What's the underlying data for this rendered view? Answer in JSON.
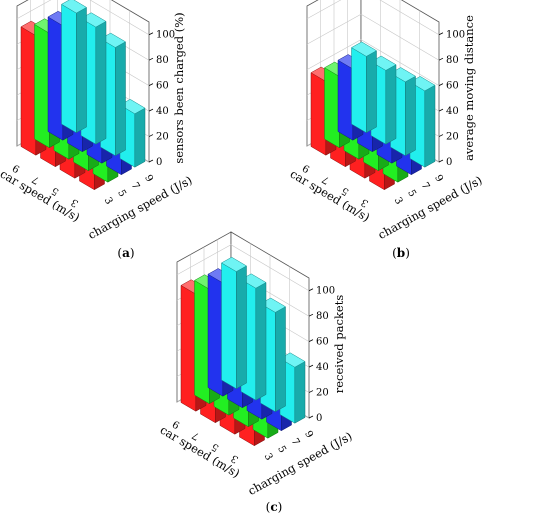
{
  "chart_data": [
    {
      "type": "bar3d",
      "caption_pre": "(",
      "caption_letter": "a",
      "caption_post": ")",
      "xlabel": "car speed (m/s)",
      "ylabel": "charging speed (J/s)",
      "zlabel": "sensors been charged (%)",
      "x_ticks": [
        "9",
        "7",
        "5",
        "3"
      ],
      "y_ticks": [
        "3",
        "5",
        "7",
        "9"
      ],
      "z_ticks": [
        "0",
        "20",
        "40",
        "60",
        "80",
        "100"
      ],
      "zlim": [
        0,
        110
      ],
      "grid": true,
      "values": [
        [
          94,
          90,
          90,
          94
        ],
        [
          91,
          88,
          88,
          92
        ],
        [
          81,
          80,
          80,
          85
        ],
        [
          44,
          39,
          40,
          42
        ]
      ]
    },
    {
      "type": "bar3d",
      "caption_pre": "(",
      "caption_letter": "b",
      "caption_post": ")",
      "xlabel": "car speed (m/s)",
      "ylabel": "charging speed (J/s)",
      "zlabel": "average moving distance",
      "x_ticks": [
        "9",
        "7",
        "5",
        "3"
      ],
      "y_ticks": [
        "3",
        "5",
        "7",
        "9"
      ],
      "z_ticks": [
        "0",
        "20",
        "40",
        "60",
        "80",
        "100"
      ],
      "zlim": [
        0,
        110
      ],
      "grid": true,
      "values": [
        [
          58,
          56,
          56,
          60
        ],
        [
          57,
          56,
          56,
          58
        ],
        [
          58,
          56,
          56,
          58
        ],
        [
          68,
          68,
          66,
          60
        ]
      ]
    },
    {
      "type": "bar3d",
      "caption_pre": "(",
      "caption_letter": "c",
      "caption_post": ")",
      "xlabel": "car speed (m/s)",
      "ylabel": "charging speed (J/s)",
      "zlabel": "received packets",
      "x_ticks": [
        "9",
        "7",
        "5",
        "3"
      ],
      "y_ticks": [
        "3",
        "5",
        "7",
        "9"
      ],
      "z_ticks": [
        "0",
        "20",
        "40",
        "60",
        "80",
        "100"
      ],
      "zlim": [
        0,
        110
      ],
      "grid": true,
      "values": [
        [
          92,
          90,
          89,
          92
        ],
        [
          88,
          86,
          86,
          88
        ],
        [
          77,
          76,
          76,
          78
        ],
        [
          44,
          40,
          42,
          44
        ]
      ]
    }
  ],
  "colors": {
    "bar_colors": [
      "#ff2020",
      "#22ee22",
      "#2233ee",
      "#22eeee"
    ],
    "frame": "#555555",
    "grid": "#c8c8c8"
  }
}
